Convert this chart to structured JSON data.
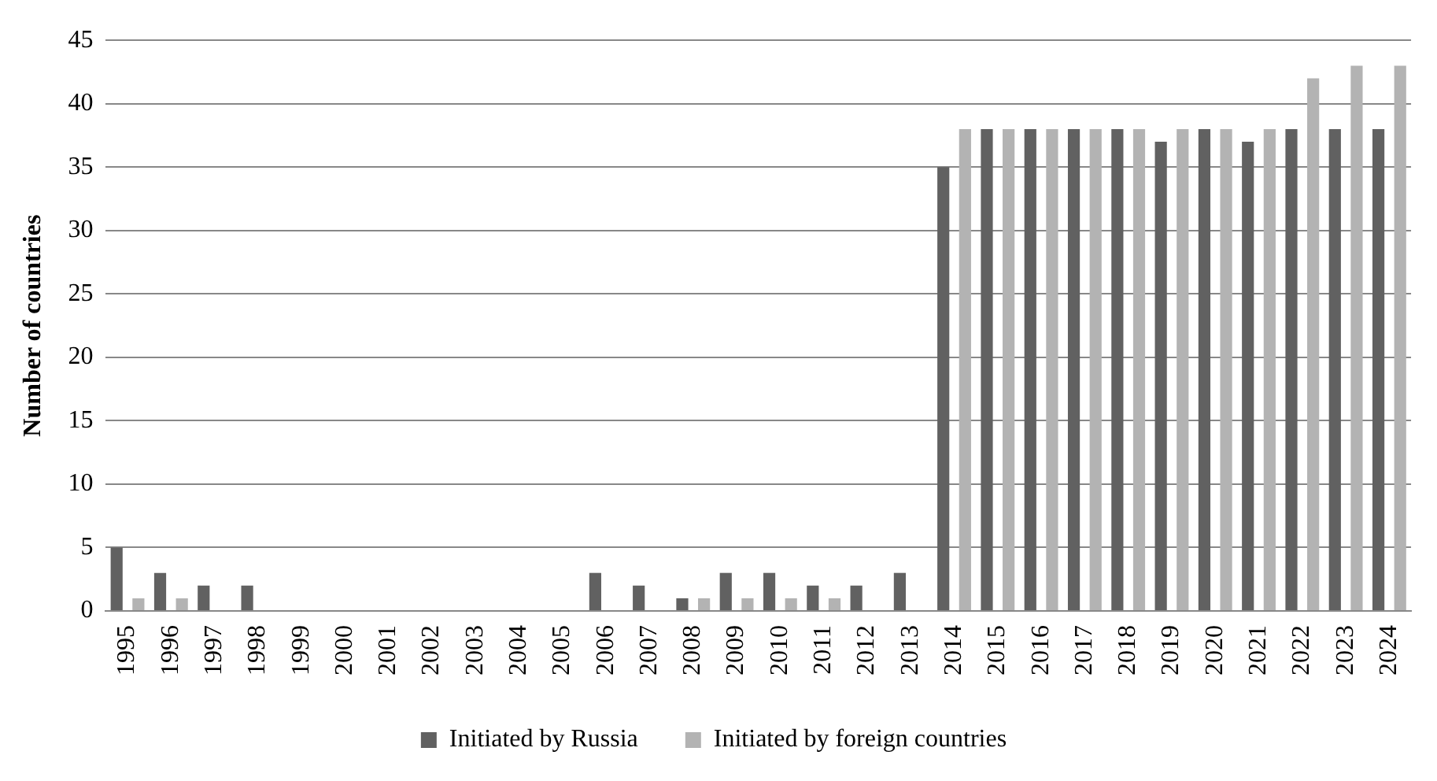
{
  "chart_data": {
    "type": "bar",
    "ylabel": "Number of countries",
    "categories": [
      "1995",
      "1996",
      "1997",
      "1998",
      "1999",
      "2000",
      "2001",
      "2002",
      "2003",
      "2004",
      "2005",
      "2006",
      "2007",
      "2008",
      "2009",
      "2010",
      "2011",
      "2012",
      "2013",
      "2014",
      "2015",
      "2016",
      "2017",
      "2018",
      "2019",
      "2020",
      "2021",
      "2022",
      "2023",
      "2024"
    ],
    "series": [
      {
        "name": "Initiated by Russia",
        "color": "#616161",
        "values": [
          5,
          3,
          2,
          2,
          0,
          0,
          0,
          0,
          0,
          0,
          0,
          3,
          2,
          1,
          3,
          3,
          2,
          2,
          3,
          35,
          38,
          38,
          38,
          38,
          37,
          38,
          37,
          38,
          38,
          38
        ]
      },
      {
        "name": "Initiated by foreign countries",
        "color": "#b3b3b3",
        "values": [
          1,
          1,
          0,
          0,
          0,
          0,
          0,
          0,
          0,
          0,
          0,
          0,
          0,
          1,
          1,
          1,
          1,
          0,
          0,
          38,
          38,
          38,
          38,
          38,
          38,
          38,
          38,
          42,
          43,
          43
        ]
      }
    ],
    "ylim": [
      0,
      45
    ],
    "yticks": [
      0,
      5,
      10,
      15,
      20,
      25,
      30,
      35,
      40,
      45
    ],
    "grid": "y",
    "legend": "bottom"
  }
}
